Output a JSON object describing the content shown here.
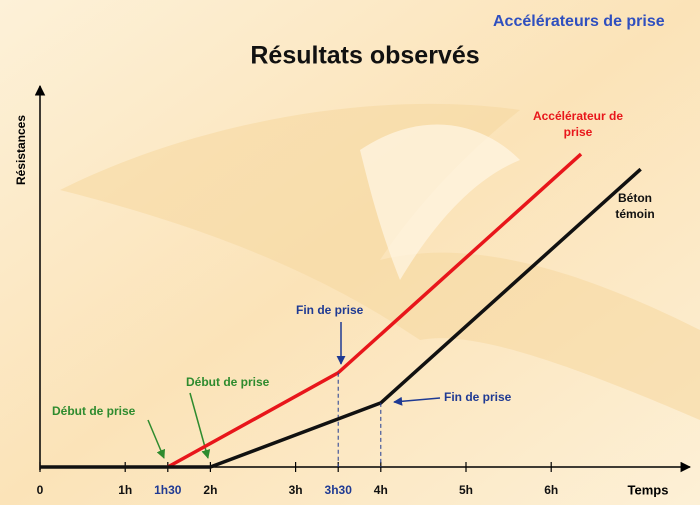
{
  "header": "Accélérateurs de prise",
  "chart_data": {
    "type": "line",
    "title": "Résultats observés",
    "y_label": "Résistances",
    "x_label": "Temps",
    "xlim": [
      0,
      7.5
    ],
    "ylim": [
      0,
      100
    ],
    "xticks": [
      0,
      {
        "value": 1,
        "label": "1h"
      },
      {
        "value": 1.5,
        "label": "1h30"
      },
      {
        "value": 2,
        "label": "2h"
      },
      {
        "value": 3,
        "label": "3h"
      },
      {
        "value": 3.5,
        "label": "3h30"
      },
      {
        "value": 4,
        "label": "4h"
      },
      {
        "value": 5,
        "label": "5h"
      },
      {
        "value": 6,
        "label": "6h"
      }
    ],
    "series": [
      {
        "name": "Accélérateur de prise",
        "color": "#e8161b",
        "x": [
          1.5,
          3.5,
          6.35
        ],
        "values": [
          0,
          25,
          83
        ]
      },
      {
        "name": "Béton témoin",
        "color": "#111111",
        "x": [
          0,
          2,
          4,
          7.05
        ],
        "values": [
          0,
          0,
          17,
          79
        ]
      }
    ],
    "annotations": [
      "Début de prise",
      "Début de prise",
      "Fin de prise",
      "Fin de prise"
    ]
  }
}
